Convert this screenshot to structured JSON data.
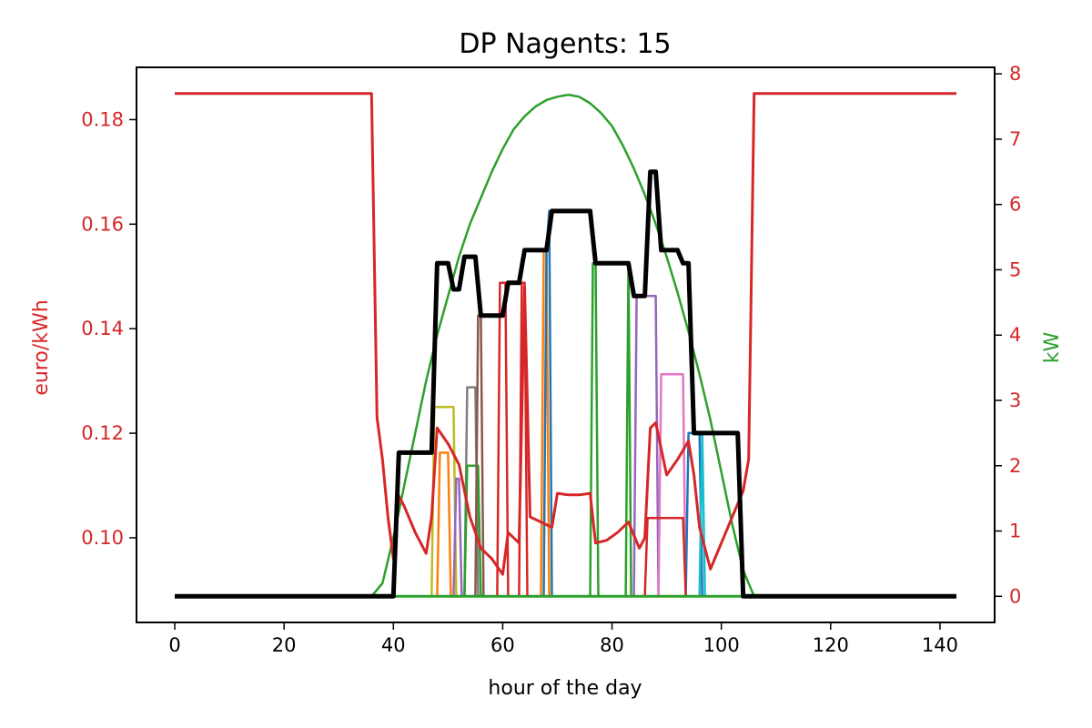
{
  "chart_data": {
    "type": "line",
    "title": "DP Nagents: 15",
    "xlabel": "hour of the day",
    "ylabel_left": "euro/kWh",
    "ylabel_right": "kW",
    "xlim": [
      -7,
      150
    ],
    "ylim_left": [
      0.0838,
      0.19
    ],
    "ylim_right": [
      -0.4,
      8.1
    ],
    "x_ticks": [
      0,
      20,
      40,
      60,
      80,
      100,
      120,
      140
    ],
    "y_ticks_left": [
      0.1,
      0.12,
      0.14,
      0.16,
      0.18
    ],
    "y_ticks_left_labels": [
      "0.10",
      "0.12",
      "0.14",
      "0.16",
      "0.18"
    ],
    "y_ticks_right": [
      0,
      1,
      2,
      3,
      4,
      5,
      6,
      7,
      8
    ],
    "colors": {
      "left_axis": "#d62728",
      "right_axis": "#2ca02c"
    },
    "price_series": {
      "axis": "left",
      "color": "#d62728",
      "points": [
        [
          0,
          0.185
        ],
        [
          36,
          0.185
        ],
        [
          37,
          0.123
        ],
        [
          38,
          0.115
        ],
        [
          39,
          0.104
        ],
        [
          40,
          0.096
        ],
        [
          41,
          0.108
        ],
        [
          42,
          0.106
        ],
        [
          44,
          0.101
        ],
        [
          46,
          0.097
        ],
        [
          47,
          0.104
        ],
        [
          48,
          0.121
        ],
        [
          50,
          0.118
        ],
        [
          52,
          0.114
        ],
        [
          54,
          0.104
        ],
        [
          56,
          0.098
        ],
        [
          58,
          0.096
        ],
        [
          60,
          0.093
        ],
        [
          61,
          0.101
        ],
        [
          63,
          0.099
        ],
        [
          64,
          0.148
        ],
        [
          65,
          0.104
        ],
        [
          67,
          0.103
        ],
        [
          69,
          0.102
        ],
        [
          70,
          0.1085
        ],
        [
          72,
          0.1082
        ],
        [
          74,
          0.1082
        ],
        [
          76,
          0.1085
        ],
        [
          77,
          0.099
        ],
        [
          79,
          0.0995
        ],
        [
          81,
          0.101
        ],
        [
          83,
          0.103
        ],
        [
          85,
          0.098
        ],
        [
          86,
          0.1
        ],
        [
          87,
          0.121
        ],
        [
          88,
          0.122
        ],
        [
          90,
          0.112
        ],
        [
          92,
          0.115
        ],
        [
          94,
          0.1185
        ],
        [
          95,
          0.112
        ],
        [
          96,
          0.102
        ],
        [
          98,
          0.094
        ],
        [
          100,
          0.099
        ],
        [
          102,
          0.104
        ],
        [
          104,
          0.109
        ],
        [
          105,
          0.115
        ],
        [
          106,
          0.185
        ],
        [
          143,
          0.185
        ]
      ]
    },
    "series": [
      {
        "axis": "right",
        "color": "#000000",
        "width": 5,
        "points": [
          [
            0,
            0
          ],
          [
            40,
            0
          ],
          [
            41,
            2.2
          ],
          [
            47,
            2.2
          ],
          [
            48,
            5.1
          ],
          [
            50,
            5.1
          ],
          [
            51,
            4.7
          ],
          [
            52,
            4.7
          ],
          [
            53,
            5.2
          ],
          [
            55,
            5.2
          ],
          [
            56,
            4.3
          ],
          [
            60,
            4.3
          ],
          [
            61,
            4.8
          ],
          [
            63,
            4.8
          ],
          [
            64,
            5.3
          ],
          [
            68,
            5.3
          ],
          [
            69,
            5.9
          ],
          [
            76,
            5.9
          ],
          [
            77,
            5.1
          ],
          [
            83,
            5.1
          ],
          [
            84,
            4.6
          ],
          [
            86,
            4.6
          ],
          [
            87,
            6.5
          ],
          [
            88,
            6.5
          ],
          [
            89,
            5.3
          ],
          [
            92,
            5.3
          ],
          [
            93,
            5.1
          ],
          [
            94,
            5.1
          ],
          [
            95,
            2.5
          ],
          [
            103,
            2.5
          ],
          [
            104,
            0
          ],
          [
            143,
            0
          ]
        ]
      },
      {
        "axis": "right",
        "color": "#2ca02c",
        "width": 2.5,
        "points": [
          [
            0,
            0
          ],
          [
            36,
            0
          ],
          [
            38,
            0.2
          ],
          [
            40,
            0.9
          ],
          [
            42,
            1.7
          ],
          [
            44,
            2.5
          ],
          [
            46,
            3.3
          ],
          [
            48,
            4.0
          ],
          [
            50,
            4.6
          ],
          [
            52,
            5.2
          ],
          [
            54,
            5.7
          ],
          [
            56,
            6.1
          ],
          [
            58,
            6.5
          ],
          [
            60,
            6.85
          ],
          [
            62,
            7.15
          ],
          [
            64,
            7.35
          ],
          [
            66,
            7.5
          ],
          [
            68,
            7.6
          ],
          [
            70,
            7.65
          ],
          [
            72,
            7.68
          ],
          [
            74,
            7.65
          ],
          [
            76,
            7.55
          ],
          [
            78,
            7.4
          ],
          [
            80,
            7.2
          ],
          [
            82,
            6.9
          ],
          [
            84,
            6.55
          ],
          [
            86,
            6.15
          ],
          [
            88,
            5.7
          ],
          [
            90,
            5.2
          ],
          [
            92,
            4.65
          ],
          [
            94,
            4.05
          ],
          [
            96,
            3.4
          ],
          [
            98,
            2.7
          ],
          [
            100,
            1.9
          ],
          [
            102,
            1.1
          ],
          [
            104,
            0.4
          ],
          [
            106,
            0
          ],
          [
            143,
            0
          ]
        ]
      },
      {
        "axis": "right",
        "color": "#bcbd22",
        "width": 2.5,
        "points": [
          [
            0,
            0
          ],
          [
            46,
            0
          ],
          [
            47,
            0
          ],
          [
            47.5,
            2.9
          ],
          [
            51,
            2.9
          ],
          [
            51.5,
            0
          ],
          [
            143,
            0
          ]
        ]
      },
      {
        "axis": "right",
        "color": "#ff7f0e",
        "width": 2.5,
        "points": [
          [
            0,
            0
          ],
          [
            48,
            0
          ],
          [
            48.5,
            2.2
          ],
          [
            50,
            2.2
          ],
          [
            50.5,
            0
          ],
          [
            143,
            0
          ]
        ]
      },
      {
        "axis": "right",
        "color": "#9467bd",
        "width": 2.5,
        "points": [
          [
            0,
            0
          ],
          [
            51,
            0
          ],
          [
            51.5,
            1.8
          ],
          [
            52,
            1.8
          ],
          [
            52.5,
            0
          ],
          [
            143,
            0
          ]
        ]
      },
      {
        "axis": "right",
        "color": "#7f7f7f",
        "width": 2.5,
        "points": [
          [
            0,
            0
          ],
          [
            53,
            0
          ],
          [
            53.5,
            3.2
          ],
          [
            55,
            3.2
          ],
          [
            55.5,
            0
          ],
          [
            143,
            0
          ]
        ]
      },
      {
        "axis": "right",
        "color": "#2ca02c",
        "width": 2.5,
        "points": [
          [
            0,
            0
          ],
          [
            53,
            0
          ],
          [
            53.5,
            2.0
          ],
          [
            55.5,
            2.0
          ],
          [
            56,
            0
          ],
          [
            143,
            0
          ]
        ]
      },
      {
        "axis": "right",
        "color": "#8c564b",
        "width": 2.5,
        "points": [
          [
            0,
            0
          ],
          [
            55,
            0
          ],
          [
            55.5,
            4.3
          ],
          [
            56,
            4.3
          ],
          [
            56.5,
            0
          ],
          [
            143,
            0
          ]
        ]
      },
      {
        "axis": "right",
        "color": "#d62728",
        "width": 2.5,
        "points": [
          [
            0,
            0
          ],
          [
            59,
            0
          ],
          [
            59.5,
            4.8
          ],
          [
            60.5,
            4.8
          ],
          [
            61,
            0
          ],
          [
            143,
            0
          ]
        ]
      },
      {
        "axis": "right",
        "color": "#d62728",
        "width": 2.5,
        "points": [
          [
            0,
            0
          ],
          [
            63,
            0
          ],
          [
            63.5,
            4.8
          ],
          [
            64,
            4.8
          ],
          [
            64.5,
            0
          ],
          [
            143,
            0
          ]
        ]
      },
      {
        "axis": "right",
        "color": "#ff7f0e",
        "width": 2.5,
        "points": [
          [
            0,
            0
          ],
          [
            67,
            0
          ],
          [
            67.5,
            5.3
          ],
          [
            68,
            5.3
          ],
          [
            68.5,
            0
          ],
          [
            143,
            0
          ]
        ]
      },
      {
        "axis": "right",
        "color": "#1f77b4",
        "width": 2.5,
        "points": [
          [
            0,
            0
          ],
          [
            67.5,
            0
          ],
          [
            68,
            5.3
          ],
          [
            68.5,
            5.9
          ],
          [
            69,
            0
          ],
          [
            143,
            0
          ]
        ]
      },
      {
        "axis": "right",
        "color": "#2ca02c",
        "width": 2.5,
        "points": [
          [
            0,
            0
          ],
          [
            76,
            0
          ],
          [
            76.5,
            5.1
          ],
          [
            77,
            5.1
          ],
          [
            77.5,
            0
          ],
          [
            143,
            0
          ]
        ]
      },
      {
        "axis": "right",
        "color": "#2ca02c",
        "width": 2.5,
        "points": [
          [
            0,
            0
          ],
          [
            82.5,
            0
          ],
          [
            83,
            5.1
          ],
          [
            83.5,
            0
          ],
          [
            143,
            0
          ]
        ]
      },
      {
        "axis": "right",
        "color": "#9467bd",
        "width": 2.5,
        "points": [
          [
            0,
            0
          ],
          [
            84,
            0
          ],
          [
            84.5,
            4.6
          ],
          [
            88,
            4.6
          ],
          [
            88.5,
            0
          ],
          [
            143,
            0
          ]
        ]
      },
      {
        "axis": "right",
        "color": "#e377c2",
        "width": 2.5,
        "points": [
          [
            0,
            0
          ],
          [
            88.5,
            0
          ],
          [
            89,
            3.4
          ],
          [
            93,
            3.4
          ],
          [
            93.5,
            0
          ],
          [
            143,
            0
          ]
        ]
      },
      {
        "axis": "right",
        "color": "#1f77b4",
        "width": 2.5,
        "points": [
          [
            0,
            0
          ],
          [
            93.5,
            0
          ],
          [
            94,
            2.5
          ],
          [
            96,
            2.5
          ],
          [
            96.5,
            0
          ],
          [
            143,
            0
          ]
        ]
      },
      {
        "axis": "right",
        "color": "#17becf",
        "width": 2.5,
        "points": [
          [
            0,
            0
          ],
          [
            96,
            0
          ],
          [
            96.5,
            2.5
          ],
          [
            97,
            0
          ],
          [
            143,
            0
          ]
        ]
      },
      {
        "axis": "right",
        "color": "#d62728",
        "width": 2.5,
        "points": [
          [
            0,
            0
          ],
          [
            86,
            0
          ],
          [
            86.5,
            1.2
          ],
          [
            93,
            1.2
          ],
          [
            93.5,
            0
          ],
          [
            143,
            0
          ]
        ]
      },
      {
        "axis": "right",
        "color": "#2ca02c",
        "width": 3,
        "points": [
          [
            0,
            0
          ],
          [
            143,
            0
          ]
        ]
      }
    ]
  }
}
